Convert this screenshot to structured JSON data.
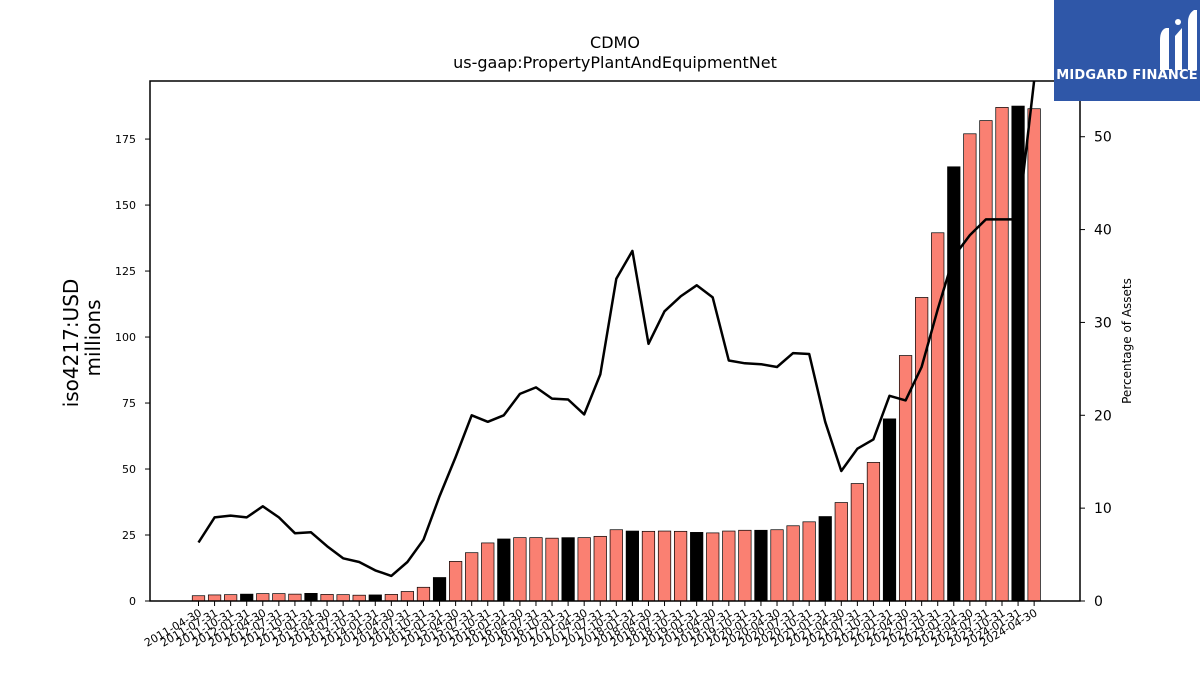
{
  "chart_data": {
    "type": "bar",
    "title": "CDMO",
    "subtitle": "us-gaap:PropertyPlantAndEquipmentNet",
    "ylabel": "iso4217:USD",
    "ylabel_unit": "millions",
    "y2label": "Percentage of Assets",
    "ylim": [
      0,
      197
    ],
    "y2lim": [
      0,
      56
    ],
    "yticks": [
      0,
      25,
      50,
      75,
      100,
      125,
      150,
      175
    ],
    "y2ticks": [
      0,
      10,
      20,
      30,
      40,
      50
    ],
    "categories": [
      "2011-04-30",
      "2011-07-31",
      "2011-10-31",
      "2012-01-31",
      "2012-04-30",
      "2012-07-31",
      "2012-10-31",
      "2013-01-31",
      "2013-04-30",
      "2013-07-31",
      "2013-10-31",
      "2014-01-31",
      "2014-04-30",
      "2014-07-31",
      "2014-10-31",
      "2015-01-31",
      "2015-04-30",
      "2015-07-31",
      "2015-10-31",
      "2016-01-31",
      "2016-04-30",
      "2016-07-31",
      "2016-10-31",
      "2017-01-31",
      "2017-04-30",
      "2017-07-31",
      "2017-10-31",
      "2018-01-31",
      "2018-04-30",
      "2018-07-31",
      "2018-10-31",
      "2019-01-31",
      "2019-04-30",
      "2019-07-31",
      "2019-10-31",
      "2020-01-31",
      "2020-04-30",
      "2020-07-31",
      "2020-10-31",
      "2021-01-31",
      "2021-04-30",
      "2021-07-31",
      "2021-10-31",
      "2022-01-31",
      "2022-04-30",
      "2022-07-31",
      "2022-10-31",
      "2023-01-31",
      "2023-04-30",
      "2023-07-31",
      "2023-10-31",
      "2024-01-31",
      "2024-04-30"
    ],
    "series": [
      {
        "values": [
          2.0,
          2.3,
          2.4,
          2.6,
          2.8,
          2.8,
          2.6,
          2.9,
          2.5,
          2.4,
          2.2,
          2.3,
          2.5,
          3.6,
          5.2,
          8.9,
          15.0,
          18.3,
          22.0,
          23.5,
          24.0,
          24.0,
          23.8,
          24.0,
          24.0,
          24.5,
          27.0,
          26.5,
          26.4,
          26.5,
          26.4,
          26.0,
          25.8,
          26.5,
          26.8,
          26.8,
          27.0,
          28.5,
          30.0,
          32.0,
          37.3,
          44.5,
          52.5,
          69.0,
          93.0,
          115.0,
          139.5,
          164.5,
          177.0,
          182.0,
          187.0,
          187.5,
          186.5
        ],
        "colors": [
          "#fa8072",
          "#fa8072",
          "#fa8072",
          "#000000",
          "#fa8072",
          "#fa8072",
          "#fa8072",
          "#000000",
          "#fa8072",
          "#fa8072",
          "#fa8072",
          "#000000",
          "#fa8072",
          "#fa8072",
          "#fa8072",
          "#000000",
          "#fa8072",
          "#fa8072",
          "#fa8072",
          "#000000",
          "#fa8072",
          "#fa8072",
          "#fa8072",
          "#000000",
          "#fa8072",
          "#fa8072",
          "#fa8072",
          "#000000",
          "#fa8072",
          "#fa8072",
          "#fa8072",
          "#000000",
          "#fa8072",
          "#fa8072",
          "#fa8072",
          "#000000",
          "#fa8072",
          "#fa8072",
          "#fa8072",
          "#000000",
          "#fa8072",
          "#fa8072",
          "#fa8072",
          "#000000",
          "#fa8072",
          "#fa8072",
          "#fa8072",
          "#000000",
          "#fa8072",
          "#fa8072",
          "#fa8072",
          "#000000",
          "#fa8072"
        ]
      },
      {
        "type": "line",
        "axis": "y2",
        "color": "#000000",
        "values": [
          6.3,
          9.0,
          9.2,
          9.0,
          10.2,
          9.0,
          7.3,
          7.4,
          5.9,
          4.6,
          4.2,
          3.3,
          2.7,
          4.2,
          6.6,
          11.3,
          15.5,
          20.0,
          19.3,
          20.0,
          22.3,
          23.0,
          21.8,
          21.7,
          20.1,
          24.4,
          34.7,
          37.7,
          27.7,
          31.2,
          32.8,
          34.0,
          32.7,
          25.9,
          25.6,
          25.5,
          25.2,
          26.7,
          26.6,
          19.3,
          14.0,
          16.4,
          17.4,
          22.1,
          21.6,
          25.2,
          31.4,
          37.1,
          39.4,
          41.1,
          41.1,
          41.1,
          56.0
        ]
      }
    ],
    "legend": "none",
    "grid": false
  },
  "logo": {
    "text": "MIDGARD FINANCE",
    "background": "#2f57a8",
    "icon": "midgard-logo-icon"
  },
  "colors": {
    "bar_default": "#fa8072",
    "bar_highlight": "#000000",
    "line": "#000000"
  }
}
